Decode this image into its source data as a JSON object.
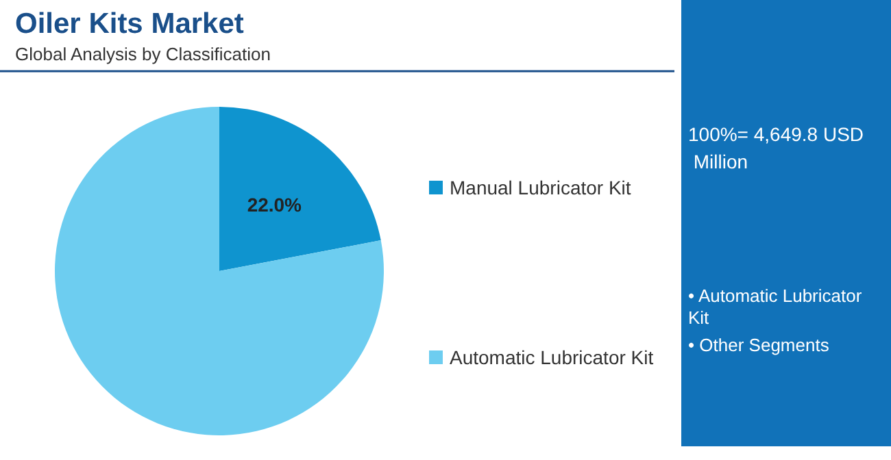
{
  "chart_data": {
    "type": "pie",
    "title": "Oiler Kits Market",
    "subtitle": "Global Analysis by Classification",
    "categories": [
      "Manual Lubricator Kit",
      "Automatic Lubricator Kit"
    ],
    "values": [
      22.0,
      78.0
    ],
    "colors": [
      "#0f94cf",
      "#6dcdf0"
    ],
    "value_labels": [
      "22.0%",
      null
    ],
    "legend": "right",
    "annotations": [
      "100%= 4,649.8 USD Million",
      "• Automatic Lubricator Kit",
      "• Other Segments"
    ]
  }
}
